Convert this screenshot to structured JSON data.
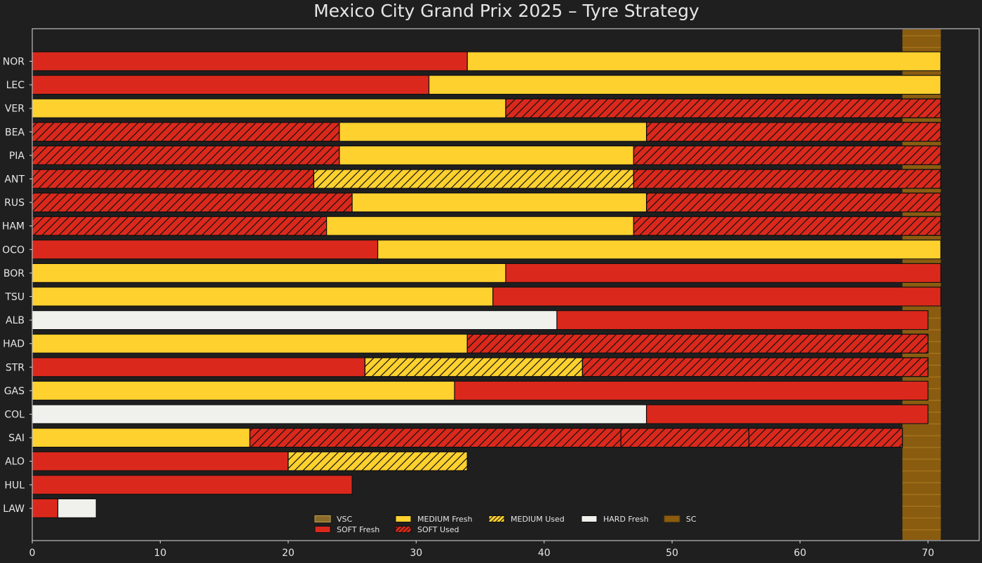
{
  "chart_data": {
    "type": "bar",
    "orientation": "horizontal-stacked",
    "title": "Mexico City Grand Prix 2025  –  Tyre Strategy",
    "xlabel": "",
    "ylabel": "",
    "xlim": [
      0,
      74
    ],
    "xticks": [
      0,
      10,
      20,
      30,
      40,
      50,
      60,
      70
    ],
    "grid": false,
    "legend_position": "bottom-center",
    "colors": {
      "background": "#1f1f1f",
      "axes_frame": "#dddddd",
      "text": "#e6e6e6",
      "SOFT": "#da291c",
      "MEDIUM": "#ffd12e",
      "HARD": "#f0f0ec",
      "SC": "#8a5c10",
      "SC_lines": "#b07c20",
      "bar_edge": "#111111",
      "hatch": "#111111"
    },
    "neutralizations": [
      {
        "type": "SC",
        "from": 68,
        "to": 71
      }
    ],
    "drivers": [
      {
        "driver": "NOR",
        "stints": [
          {
            "compound": "SOFT",
            "fresh": true,
            "start": 0,
            "end": 34
          },
          {
            "compound": "MEDIUM",
            "fresh": true,
            "start": 34,
            "end": 71
          }
        ]
      },
      {
        "driver": "LEC",
        "stints": [
          {
            "compound": "SOFT",
            "fresh": true,
            "start": 0,
            "end": 31
          },
          {
            "compound": "MEDIUM",
            "fresh": true,
            "start": 31,
            "end": 71
          }
        ]
      },
      {
        "driver": "VER",
        "stints": [
          {
            "compound": "MEDIUM",
            "fresh": true,
            "start": 0,
            "end": 37
          },
          {
            "compound": "SOFT",
            "fresh": false,
            "start": 37,
            "end": 71
          }
        ]
      },
      {
        "driver": "BEA",
        "stints": [
          {
            "compound": "SOFT",
            "fresh": false,
            "start": 0,
            "end": 24
          },
          {
            "compound": "MEDIUM",
            "fresh": true,
            "start": 24,
            "end": 48
          },
          {
            "compound": "SOFT",
            "fresh": false,
            "start": 48,
            "end": 71
          }
        ]
      },
      {
        "driver": "PIA",
        "stints": [
          {
            "compound": "SOFT",
            "fresh": false,
            "start": 0,
            "end": 24
          },
          {
            "compound": "MEDIUM",
            "fresh": true,
            "start": 24,
            "end": 47
          },
          {
            "compound": "SOFT",
            "fresh": false,
            "start": 47,
            "end": 71
          }
        ]
      },
      {
        "driver": "ANT",
        "stints": [
          {
            "compound": "SOFT",
            "fresh": false,
            "start": 0,
            "end": 22
          },
          {
            "compound": "MEDIUM",
            "fresh": false,
            "start": 22,
            "end": 47
          },
          {
            "compound": "SOFT",
            "fresh": false,
            "start": 47,
            "end": 71
          }
        ]
      },
      {
        "driver": "RUS",
        "stints": [
          {
            "compound": "SOFT",
            "fresh": false,
            "start": 0,
            "end": 25
          },
          {
            "compound": "MEDIUM",
            "fresh": true,
            "start": 25,
            "end": 48
          },
          {
            "compound": "SOFT",
            "fresh": false,
            "start": 48,
            "end": 71
          }
        ]
      },
      {
        "driver": "HAM",
        "stints": [
          {
            "compound": "SOFT",
            "fresh": false,
            "start": 0,
            "end": 23
          },
          {
            "compound": "MEDIUM",
            "fresh": true,
            "start": 23,
            "end": 47
          },
          {
            "compound": "SOFT",
            "fresh": false,
            "start": 47,
            "end": 71
          }
        ]
      },
      {
        "driver": "OCO",
        "stints": [
          {
            "compound": "SOFT",
            "fresh": true,
            "start": 0,
            "end": 27
          },
          {
            "compound": "MEDIUM",
            "fresh": true,
            "start": 27,
            "end": 71
          }
        ]
      },
      {
        "driver": "BOR",
        "stints": [
          {
            "compound": "MEDIUM",
            "fresh": true,
            "start": 0,
            "end": 37
          },
          {
            "compound": "SOFT",
            "fresh": true,
            "start": 37,
            "end": 71
          }
        ]
      },
      {
        "driver": "TSU",
        "stints": [
          {
            "compound": "MEDIUM",
            "fresh": true,
            "start": 0,
            "end": 36
          },
          {
            "compound": "SOFT",
            "fresh": true,
            "start": 36,
            "end": 71
          }
        ]
      },
      {
        "driver": "ALB",
        "stints": [
          {
            "compound": "HARD",
            "fresh": true,
            "start": 0,
            "end": 41
          },
          {
            "compound": "SOFT",
            "fresh": true,
            "start": 41,
            "end": 70
          }
        ]
      },
      {
        "driver": "HAD",
        "stints": [
          {
            "compound": "MEDIUM",
            "fresh": true,
            "start": 0,
            "end": 34
          },
          {
            "compound": "SOFT",
            "fresh": false,
            "start": 34,
            "end": 70
          }
        ]
      },
      {
        "driver": "STR",
        "stints": [
          {
            "compound": "SOFT",
            "fresh": true,
            "start": 0,
            "end": 26
          },
          {
            "compound": "MEDIUM",
            "fresh": false,
            "start": 26,
            "end": 43
          },
          {
            "compound": "SOFT",
            "fresh": false,
            "start": 43,
            "end": 70
          }
        ]
      },
      {
        "driver": "GAS",
        "stints": [
          {
            "compound": "MEDIUM",
            "fresh": true,
            "start": 0,
            "end": 33
          },
          {
            "compound": "SOFT",
            "fresh": true,
            "start": 33,
            "end": 70
          }
        ]
      },
      {
        "driver": "COL",
        "stints": [
          {
            "compound": "HARD",
            "fresh": true,
            "start": 0,
            "end": 48
          },
          {
            "compound": "SOFT",
            "fresh": true,
            "start": 48,
            "end": 70
          }
        ]
      },
      {
        "driver": "SAI",
        "stints": [
          {
            "compound": "MEDIUM",
            "fresh": true,
            "start": 0,
            "end": 17
          },
          {
            "compound": "SOFT",
            "fresh": false,
            "start": 17,
            "end": 46
          },
          {
            "compound": "SOFT",
            "fresh": false,
            "start": 46,
            "end": 56
          },
          {
            "compound": "SOFT",
            "fresh": false,
            "start": 56,
            "end": 68
          }
        ]
      },
      {
        "driver": "ALO",
        "stints": [
          {
            "compound": "SOFT",
            "fresh": true,
            "start": 0,
            "end": 20
          },
          {
            "compound": "MEDIUM",
            "fresh": false,
            "start": 20,
            "end": 34
          }
        ]
      },
      {
        "driver": "HUL",
        "stints": [
          {
            "compound": "SOFT",
            "fresh": true,
            "start": 0,
            "end": 25
          }
        ]
      },
      {
        "driver": "LAW",
        "stints": [
          {
            "compound": "SOFT",
            "fresh": true,
            "start": 0,
            "end": 2
          },
          {
            "compound": "HARD",
            "fresh": true,
            "start": 2,
            "end": 5
          }
        ]
      }
    ],
    "legend": [
      {
        "label": "VSC",
        "swatch": "VSC"
      },
      {
        "label": "SOFT Fresh",
        "swatch": "SOFT_FRESH"
      },
      {
        "label": "MEDIUM Fresh",
        "swatch": "MEDIUM_FRESH"
      },
      {
        "label": "SOFT Used",
        "swatch": "SOFT_USED"
      },
      {
        "label": "MEDIUM Used",
        "swatch": "MEDIUM_USED"
      },
      {
        "label": "HARD Fresh",
        "swatch": "HARD_FRESH"
      },
      {
        "label": "SC",
        "swatch": "SC"
      }
    ]
  }
}
